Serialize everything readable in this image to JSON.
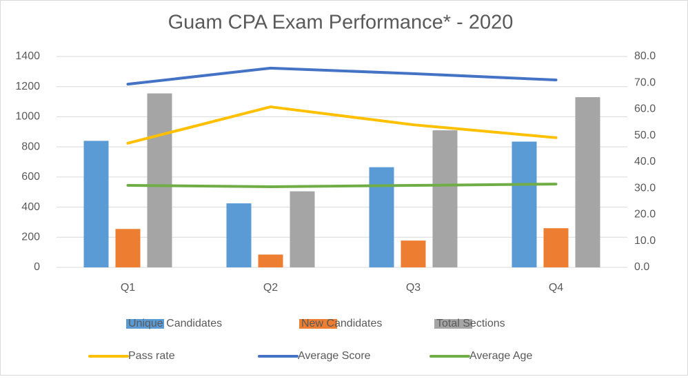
{
  "chart_data": {
    "type": "combo",
    "title": "Guam CPA Exam Performance* - 2020",
    "categories": [
      "Q1",
      "Q2",
      "Q3",
      "Q4"
    ],
    "series": [
      {
        "name": "Unique Candidates",
        "type": "bar",
        "color": "#5b9bd5",
        "values": [
          840,
          425,
          665,
          835
        ]
      },
      {
        "name": "New Candidates",
        "type": "bar",
        "color": "#ed7d31",
        "values": [
          255,
          85,
          178,
          260
        ]
      },
      {
        "name": "Total Sections",
        "type": "bar",
        "color": "#a5a5a5",
        "values": [
          1155,
          505,
          910,
          1130
        ]
      },
      {
        "name": "Pass rate",
        "type": "line",
        "axis": "y2",
        "color": "#ffc000",
        "values": [
          47.1,
          60.9,
          54.1,
          49.2
        ]
      },
      {
        "name": "Average Score",
        "type": "line",
        "axis": "y2",
        "color": "#4472c4",
        "values": [
          69.5,
          75.6,
          73.5,
          71.1
        ]
      },
      {
        "name": "Average Age",
        "type": "line",
        "axis": "y2",
        "color": "#70ad47",
        "values": [
          31.1,
          30.6,
          31.1,
          31.6
        ]
      }
    ],
    "ylim": [
      0,
      1400
    ],
    "yticks": [
      0,
      200,
      400,
      600,
      800,
      1000,
      1200,
      1400
    ],
    "y2lim": [
      0,
      80
    ],
    "y2ticks": [
      {
        "value": 0,
        "label": "0.0"
      },
      {
        "value": 10,
        "label": "10.0"
      },
      {
        "value": 20,
        "label": "20.0"
      },
      {
        "value": 30,
        "label": "30.0"
      },
      {
        "value": 40,
        "label": "40.0"
      },
      {
        "value": 50,
        "label": "50.0"
      },
      {
        "value": 60,
        "label": "60.0"
      },
      {
        "value": 70,
        "label": "70.0"
      },
      {
        "value": 80,
        "label": "80.0"
      }
    ],
    "grid": true,
    "legend": "bottom"
  }
}
